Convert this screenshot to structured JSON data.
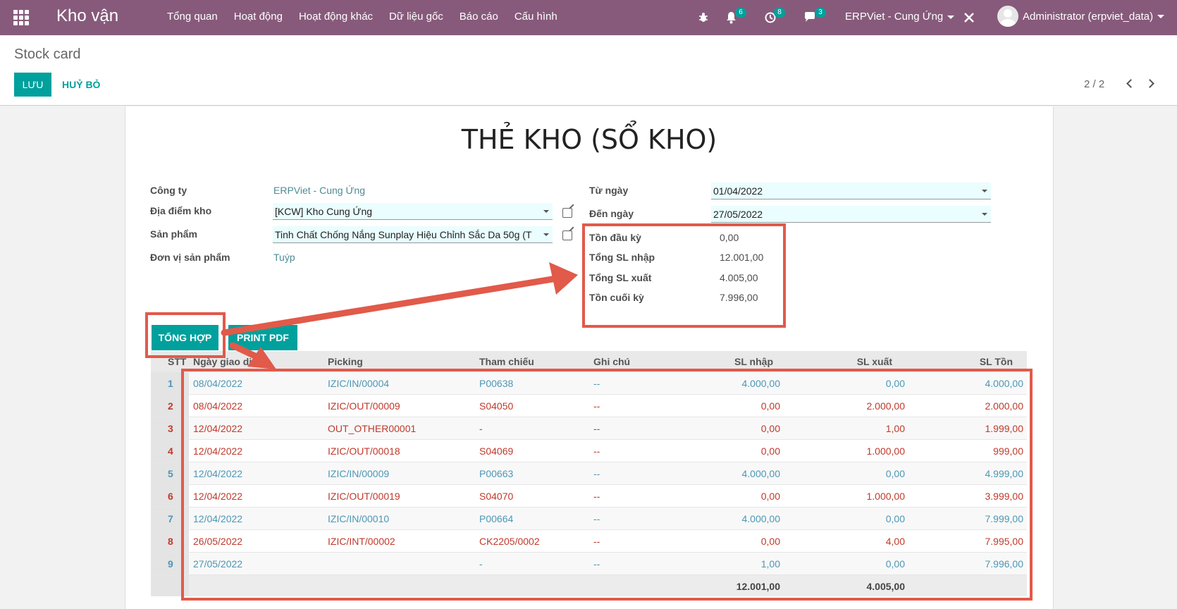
{
  "navbar": {
    "brand": "Kho vận",
    "menu": [
      "Tổng quan",
      "Hoạt động",
      "Hoạt động khác",
      "Dữ liệu gốc",
      "Báo cáo",
      "Cấu hình"
    ],
    "notifications_count": "6",
    "activities_count": "8",
    "messages_count": "3",
    "company": "ERPViet - Cung Ứng",
    "user": "Administrator (erpviet_data)",
    "icons": [
      "apps-icon",
      "bug-icon",
      "bell-icon",
      "clock-icon",
      "chat-icon",
      "tools-icon"
    ]
  },
  "control": {
    "breadcrumb": "Stock card",
    "save_label": "LƯU",
    "discard_label": "HUỶ BỎ",
    "pager": "2 / 2"
  },
  "form": {
    "title": "THẺ KHO (SỔ KHO)",
    "company_label": "Công ty",
    "company_value": "ERPViet - Cung Ứng",
    "location_label": "Địa điểm kho",
    "location_value": "[KCW] Kho Cung Ứng",
    "product_label": "Sản phẩm",
    "product_value": "Tinh Chất Chống Nắng Sunplay Hiệu Chỉnh Sắc Da 50g (T",
    "uom_label": "Đơn vị sản phẩm",
    "uom_value": "Tuýp",
    "from_date_label": "Từ ngày",
    "from_date_value": "01/04/2022",
    "to_date_label": "Đến ngày",
    "to_date_value": "27/05/2022",
    "opening_label": "Tồn đầu kỳ",
    "opening_value": "0,00",
    "total_in_label": "Tổng SL nhập",
    "total_in_value": "12.001,00",
    "total_out_label": "Tổng SL xuất",
    "total_out_value": "4.005,00",
    "closing_label": "Tồn cuối kỳ",
    "closing_value": "7.996,00",
    "summary_button": "TỔNG HỢP",
    "print_button": "PRINT PDF"
  },
  "table": {
    "headers": [
      "STT",
      "Ngày giao dịch",
      "Picking",
      "Tham chiếu",
      "Ghi chú",
      "SL nhập",
      "SL xuất",
      "SL Tồn"
    ],
    "rows": [
      {
        "stt": "1",
        "date": "08/04/2022",
        "picking": "IZIC/IN/00004",
        "ref": "P00638",
        "note": "--",
        "in": "4.000,00",
        "out": "0,00",
        "balance": "4.000,00",
        "tone": "blue"
      },
      {
        "stt": "2",
        "date": "08/04/2022",
        "picking": "IZIC/OUT/00009",
        "ref": "S04050",
        "note": "--",
        "in": "0,00",
        "out": "2.000,00",
        "balance": "2.000,00",
        "tone": "red"
      },
      {
        "stt": "3",
        "date": "12/04/2022",
        "picking": "OUT_OTHER00001",
        "ref": "-",
        "note": "--",
        "in": "0,00",
        "out": "1,00",
        "balance": "1.999,00",
        "tone": "red"
      },
      {
        "stt": "4",
        "date": "12/04/2022",
        "picking": "IZIC/OUT/00018",
        "ref": "S04069",
        "note": "--",
        "in": "0,00",
        "out": "1.000,00",
        "balance": "999,00",
        "tone": "red"
      },
      {
        "stt": "5",
        "date": "12/04/2022",
        "picking": "IZIC/IN/00009",
        "ref": "P00663",
        "note": "--",
        "in": "4.000,00",
        "out": "0,00",
        "balance": "4.999,00",
        "tone": "blue"
      },
      {
        "stt": "6",
        "date": "12/04/2022",
        "picking": "IZIC/OUT/00019",
        "ref": "S04070",
        "note": "--",
        "in": "0,00",
        "out": "1.000,00",
        "balance": "3.999,00",
        "tone": "red"
      },
      {
        "stt": "7",
        "date": "12/04/2022",
        "picking": "IZIC/IN/00010",
        "ref": "P00664",
        "note": "--",
        "in": "4.000,00",
        "out": "0,00",
        "balance": "7.999,00",
        "tone": "blue"
      },
      {
        "stt": "8",
        "date": "26/05/2022",
        "picking": "IZIC/INT/00002",
        "ref": "CK2205/0002",
        "note": "--",
        "in": "0,00",
        "out": "4,00",
        "balance": "7.995,00",
        "tone": "red"
      },
      {
        "stt": "9",
        "date": "27/05/2022",
        "picking": "",
        "ref": "-",
        "note": "--",
        "in": "1,00",
        "out": "0,00",
        "balance": "7.996,00",
        "tone": "blue"
      }
    ],
    "footer_in": "12.001,00",
    "footer_out": "4.005,00"
  },
  "colors": {
    "navbar": "#875a7b",
    "accent": "#00a09d",
    "annotation": "#e15a4a",
    "row_blue": "#4d97b5",
    "row_red": "#c0392b"
  }
}
